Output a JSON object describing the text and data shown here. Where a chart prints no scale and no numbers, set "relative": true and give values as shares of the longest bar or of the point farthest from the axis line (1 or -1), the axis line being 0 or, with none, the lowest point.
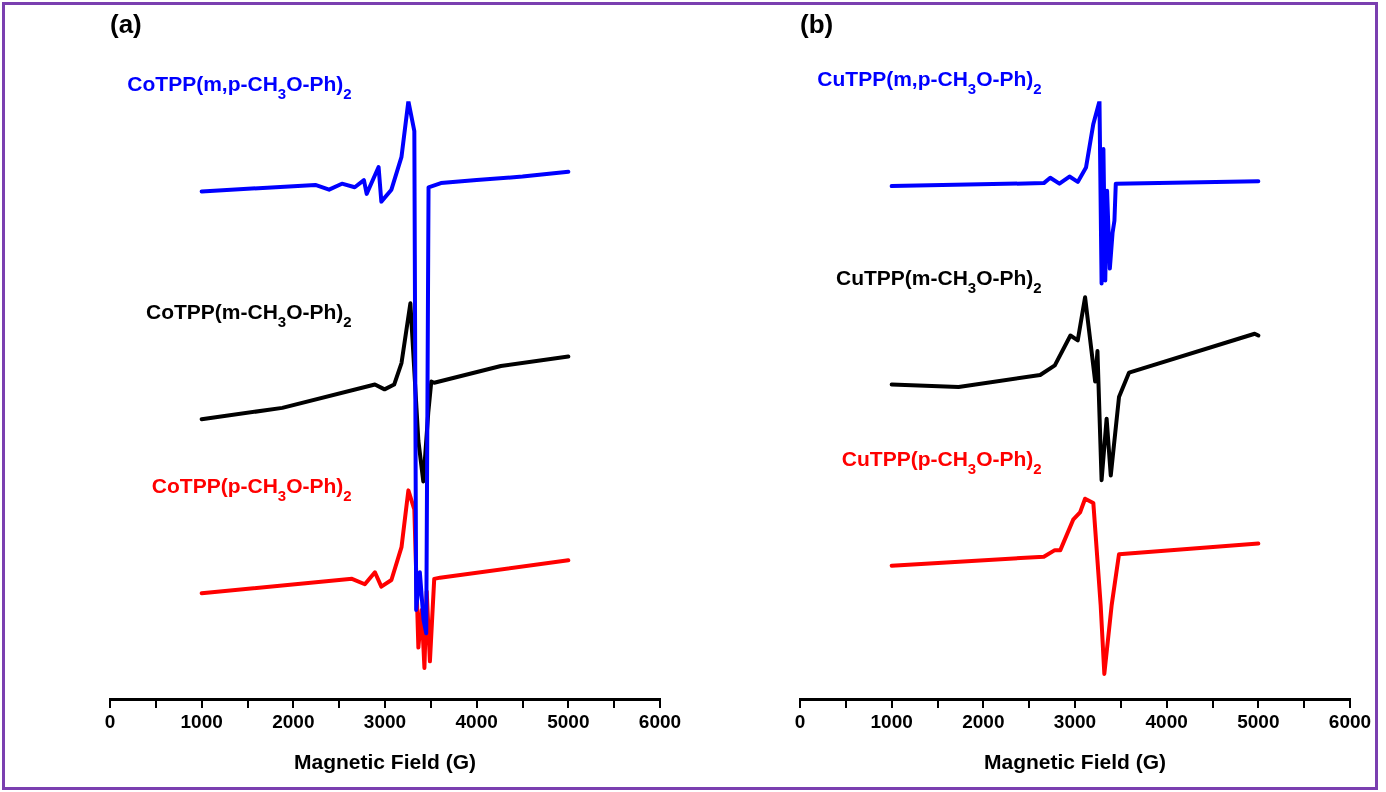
{
  "chart_data": [
    {
      "type": "line",
      "title": "(a)",
      "xlabel": "Magnetic Field (G)",
      "relative": true,
      "tick_labels": "x",
      "grid": false,
      "legend": false,
      "marker": "none",
      "line_style": "solid",
      "xlim": [
        0,
        6000
      ],
      "xticks": [
        0,
        {
          "value": 500,
          "label": null
        },
        1000,
        {
          "value": 1500,
          "label": null
        },
        2000,
        {
          "value": 2500,
          "label": null
        },
        3000,
        {
          "value": 3500,
          "label": null
        },
        4000,
        {
          "value": 4500,
          "label": null
        },
        5000,
        {
          "value": 5500,
          "label": null
        },
        6000
      ],
      "series": [
        {
          "name": "CoTPP(m,p-CH$_{3}$O-Ph)$_{2}$",
          "color": "#0000ff",
          "x": [
            1000,
            2240,
            2390,
            2530,
            2670,
            2770,
            2800,
            2930,
            2960,
            3070,
            3180,
            3255,
            3320,
            3340,
            3380,
            3420,
            3450,
            3475,
            3610,
            4000,
            4500,
            5000
          ],
          "values": [
            0.849,
            0.86,
            0.852,
            0.862,
            0.856,
            0.868,
            0.845,
            0.89,
            0.832,
            0.852,
            0.907,
            1.0,
            0.95,
            0.149,
            0.212,
            0.133,
            0.11,
            0.856,
            0.863,
            0.868,
            0.874,
            0.882
          ]
        },
        {
          "name": "CoTPP(m-CH$_{3}$O-Ph)$_{2}$",
          "color": "#000000",
          "x": [
            1000,
            1880,
            2890,
            2995,
            3100,
            3180,
            3277,
            3364,
            3418,
            3472,
            3505,
            3537,
            4264,
            5000
          ],
          "values": [
            0.468,
            0.487,
            0.526,
            0.518,
            0.526,
            0.562,
            0.662,
            0.432,
            0.364,
            0.479,
            0.531,
            0.529,
            0.557,
            0.573
          ]
        },
        {
          "name": "CoTPP(p-CH$_{3}$O-Ph)$_{2}$",
          "color": "#ff0000",
          "x": [
            1000,
            2640,
            2780,
            2890,
            2960,
            3070,
            3180,
            3255,
            3320,
            3364,
            3400,
            3430,
            3455,
            3490,
            3537,
            3600,
            5000
          ],
          "values": [
            0.177,
            0.201,
            0.192,
            0.212,
            0.188,
            0.199,
            0.254,
            0.349,
            0.317,
            0.086,
            0.149,
            0.052,
            0.18,
            0.063,
            0.201,
            0.203,
            0.232
          ]
        }
      ]
    },
    {
      "type": "line",
      "title": "(b)",
      "xlabel": "Magnetic Field (G)",
      "relative": true,
      "tick_labels": "x",
      "grid": false,
      "legend": false,
      "marker": "none",
      "line_style": "solid",
      "xlim": [
        0,
        6000
      ],
      "xticks": [
        0,
        {
          "value": 500,
          "label": null
        },
        1000,
        {
          "value": 1500,
          "label": null
        },
        2000,
        {
          "value": 2500,
          "label": null
        },
        3000,
        {
          "value": 3500,
          "label": null
        },
        4000,
        {
          "value": 4500,
          "label": null
        },
        5000,
        {
          "value": 5500,
          "label": null
        },
        6000
      ],
      "series": [
        {
          "name": "CuTPP(m,p-CH$_{3}$O-Ph)$_{2}$",
          "color": "#0000ff",
          "x": [
            1000,
            2660,
            2730,
            2830,
            2940,
            3030,
            3120,
            3200,
            3267,
            3290,
            3310,
            3330,
            3350,
            3380,
            3410,
            3430,
            3445,
            5000
          ],
          "values": [
            0.858,
            0.863,
            0.872,
            0.862,
            0.874,
            0.865,
            0.889,
            0.962,
            1.0,
            0.695,
            0.92,
            0.7,
            0.85,
            0.72,
            0.78,
            0.8,
            0.862,
            0.866
          ]
        },
        {
          "name": "CuTPP(m-CH$_{3}$O-Ph)$_{2}$",
          "color": "#000000",
          "x": [
            1000,
            1730,
            2620,
            2780,
            2950,
            3030,
            3110,
            3220,
            3245,
            3290,
            3345,
            3390,
            3480,
            3590,
            4960,
            5000
          ],
          "values": [
            0.526,
            0.522,
            0.542,
            0.558,
            0.608,
            0.6,
            0.672,
            0.531,
            0.582,
            0.366,
            0.469,
            0.374,
            0.505,
            0.546,
            0.611,
            0.608
          ]
        },
        {
          "name": "CuTPP(p-CH$_{3}$O-Ph)$_{2}$",
          "color": "#ff0000",
          "x": [
            1000,
            2660,
            2780,
            2840,
            2980,
            3055,
            3110,
            3200,
            3280,
            3320,
            3400,
            3480,
            5000
          ],
          "values": [
            0.223,
            0.238,
            0.249,
            0.249,
            0.3,
            0.312,
            0.335,
            0.328,
            0.157,
            0.042,
            0.157,
            0.242,
            0.26
          ]
        }
      ]
    }
  ]
}
